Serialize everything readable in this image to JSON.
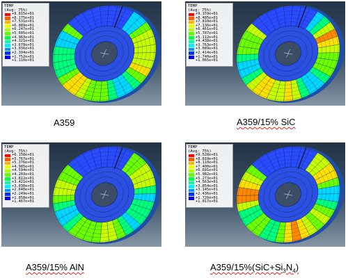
{
  "legend_colors": [
    "#ff0000",
    "#ff5a00",
    "#ffb400",
    "#eaff00",
    "#a8ff00",
    "#5fff00",
    "#00ff3c",
    "#00ffa0",
    "#00f0ff",
    "#0096ff",
    "#0032ff",
    "#0000e6"
  ],
  "panels": [
    {
      "legend": {
        "title": "TEMP",
        "subtitle": "(Avg: 75%)",
        "values": [
          "+8.815e+01",
          "+8.175e+01",
          "+7.531e+01",
          "+6.889e+01",
          "+6.247e+01",
          "+5.605e+01",
          "+4.963e+01",
          "+4.321e+01",
          "+3.678e+01",
          "+3.036e+01",
          "+2.394e+01",
          "+1.752e+01",
          "+1.110e+01"
        ]
      },
      "caption": {
        "main": "A359",
        "subscript": "",
        "suffix": "",
        "spellcheck_underlined": false
      }
    },
    {
      "legend": {
        "title": "TEMP",
        "subtitle": "(Avg: 75%)",
        "values": [
          "+9.159e+01",
          "+8.485e+01",
          "+7.810e+01",
          "+7.136e+01",
          "+6.461e+01",
          "+5.787e+01",
          "+5.112e+01",
          "+4.438e+01",
          "+3.763e+01",
          "+3.089e+01",
          "+2.414e+01",
          "+1.740e+01",
          "+1.065e+01"
        ]
      },
      "caption": {
        "main": "A359/15% SiC",
        "subscript": "",
        "suffix": "",
        "spellcheck_underlined": true
      }
    },
    {
      "legend": {
        "title": "TEMP",
        "subtitle": "(Avg: 75%)",
        "values": [
          "+6.158e+01",
          "+5.767e+01",
          "+5.376e+01",
          "+4.985e+01",
          "+4.594e+01",
          "+4.203e+01",
          "+3.812e+01",
          "+3.421e+01",
          "+3.030e+01",
          "+2.640e+01",
          "+2.249e+01",
          "+1.858e+01",
          "+1.467e+01"
        ]
      },
      "caption": {
        "main": "A359/15% AlN",
        "subscript": "",
        "suffix": "",
        "spellcheck_underlined": true
      }
    },
    {
      "legend": {
        "title": "TEMP",
        "subtitle": "(Avg: 75%)",
        "values": [
          "+9.528e+01",
          "+8.819e+01",
          "+8.110e+01",
          "+7.400e+01",
          "+6.691e+01",
          "+5.982e+01",
          "+5.273e+01",
          "+4.563e+01",
          "+3.854e+01",
          "+3.145e+01",
          "+2.436e+01",
          "+1.726e+01",
          "+1.017e+01"
        ]
      },
      "caption": {
        "main": "A359/15%(SiC+Si",
        "subscript": "3",
        "main2": "N",
        "subscript2": "4",
        "suffix": ")",
        "spellcheck_underlined": true
      }
    }
  ]
}
